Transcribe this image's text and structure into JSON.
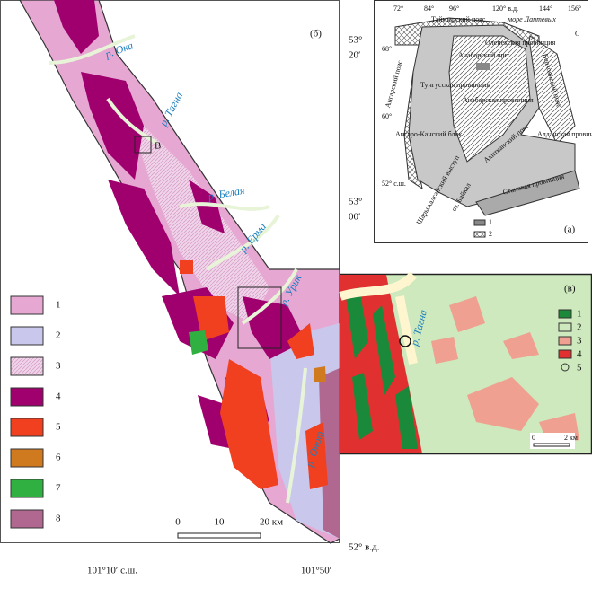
{
  "panel_b": {
    "label": "(б)",
    "lat_labels": [
      "53°",
      "20′",
      "53°",
      "00′"
    ],
    "lon_labels": [
      "101°10′ с.ш.",
      "101°50′",
      "52° в.д."
    ],
    "rivers": [
      "р. Ока",
      "р. Тагна",
      "р. Белая",
      "р. Ерма",
      "р. Урик",
      "р. Онот"
    ],
    "site": "В",
    "scale": [
      "0",
      "10",
      "20 км"
    ],
    "legend": [
      "1",
      "2",
      "3",
      "4",
      "5",
      "6",
      "7",
      "8"
    ]
  },
  "panel_a": {
    "label": "(а)",
    "top_labels": [
      "72°",
      "84°",
      "96°",
      "120° в.д.",
      "144°",
      "156°"
    ],
    "lat_labels": [
      "68°",
      "60°",
      "52° с.ш."
    ],
    "north": "С",
    "regions": [
      "Таймырский пояс",
      "море Лаптевых",
      "Оленекская провинция",
      "Анабарский щит",
      "Тунгусская провинция",
      "Ангарский пояс",
      "Верхоянский пояс",
      "Анабарская провинция",
      "Акитканский пояс",
      "Алданская провинция",
      "Ангаро-Канский блок",
      "Шарыжалгайский выступ",
      "оз. Байкал",
      "Становая провинция"
    ],
    "legend": [
      "1",
      "2"
    ]
  },
  "panel_c": {
    "label": "(в)",
    "river": "р. Тагна",
    "scale": [
      "0",
      "2 км"
    ],
    "legend": [
      "1",
      "2",
      "3",
      "4",
      "5"
    ]
  }
}
